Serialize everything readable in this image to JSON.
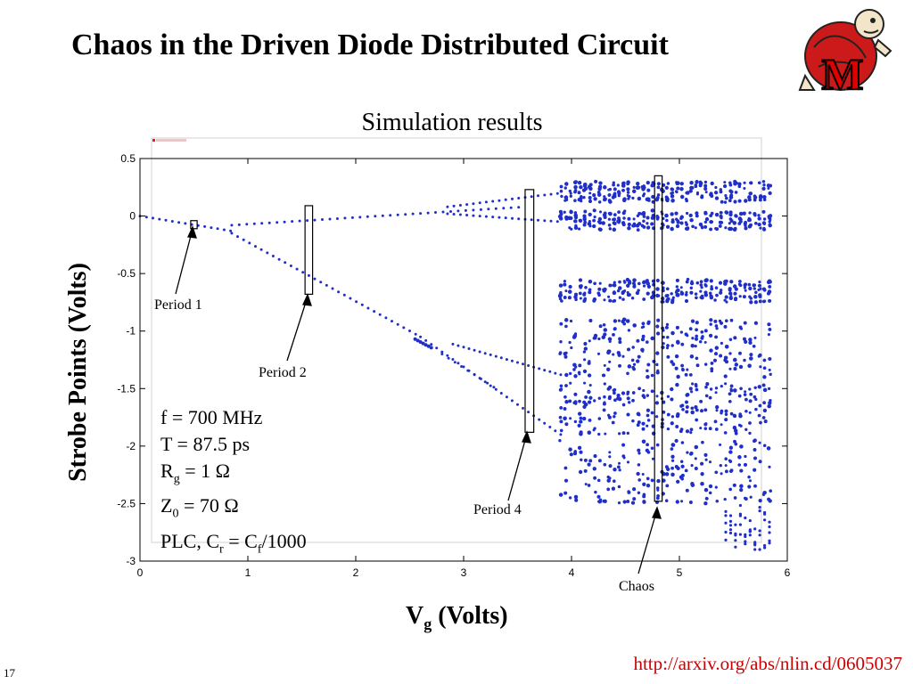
{
  "slide": {
    "title": "Chaos in the Driven Diode Distributed Circuit",
    "subtitle": "Simulation results",
    "url": "http://arxiv.org/abs/nlin.cd/0605037",
    "slide_number": "17",
    "logo_letter": "M",
    "params": {
      "f": "f = 700 MHz",
      "T": "T = 87.5 ps",
      "Rg_pre": "R",
      "Rg_sub": "g",
      "Rg_post": " = 1 Ω",
      "Z0_pre": "Z",
      "Z0_sub": "0",
      "Z0_post": " = 70 Ω",
      "plc_pre": "PLC, C",
      "plc_sub1": "r",
      "plc_mid": " = C",
      "plc_sub2": "f",
      "plc_post": "/1000"
    },
    "annotations": {
      "period1": "Period 1",
      "period2": "Period 2",
      "period4": "Period 4",
      "chaos": "Chaos"
    }
  },
  "colors": {
    "points": "#1f2fc8",
    "url": "#cc0000",
    "logo_red": "#d40000"
  },
  "chart_data": {
    "type": "scatter",
    "title": "Simulation results",
    "xlabel_main": "V",
    "xlabel_sub": "g",
    "xlabel_rest": " (Volts)",
    "ylabel": "Strobe Points (Volts)",
    "xlim": [
      0,
      6
    ],
    "ylim": [
      -3,
      0.5
    ],
    "xticks": [
      0,
      1,
      2,
      3,
      4,
      5,
      6
    ],
    "xtick_labels": [
      "0",
      "1",
      "2",
      "3",
      "4",
      "5",
      "6"
    ],
    "yticks": [
      0.5,
      0,
      -0.5,
      -1,
      -1.5,
      -2,
      -2.5,
      -3
    ],
    "ytick_labels": [
      "0.5",
      "0",
      "-0.5",
      "-1",
      "-1.5",
      "-2",
      "-2.5",
      "-3"
    ],
    "grid": false,
    "highlight_boxes": [
      {
        "label": "Period 1",
        "x": [
          0.47,
          0.53
        ],
        "y": [
          -0.11,
          -0.04
        ]
      },
      {
        "label": "Period 2",
        "x": [
          1.53,
          1.6
        ],
        "y": [
          -0.68,
          0.09
        ]
      },
      {
        "label": "Period 4",
        "x": [
          3.57,
          3.65
        ],
        "y": [
          -1.88,
          0.23
        ]
      },
      {
        "label": "Chaos",
        "x": [
          4.77,
          4.84
        ],
        "y": [
          -2.48,
          0.35
        ]
      }
    ],
    "branches": {
      "period1": {
        "x": [
          0,
          0.85
        ],
        "y": [
          0.0,
          -0.13
        ]
      },
      "upper": {
        "x": [
          0.85,
          3.57
        ],
        "y": [
          -0.08,
          0.08
        ]
      },
      "lower": {
        "x": [
          0.85,
          2.6
        ],
        "y": [
          -0.15,
          -1.05
        ]
      },
      "lower_continued": {
        "x": [
          2.6,
          3.57
        ],
        "y": [
          -1.05,
          -1.78
        ]
      }
    }
  }
}
